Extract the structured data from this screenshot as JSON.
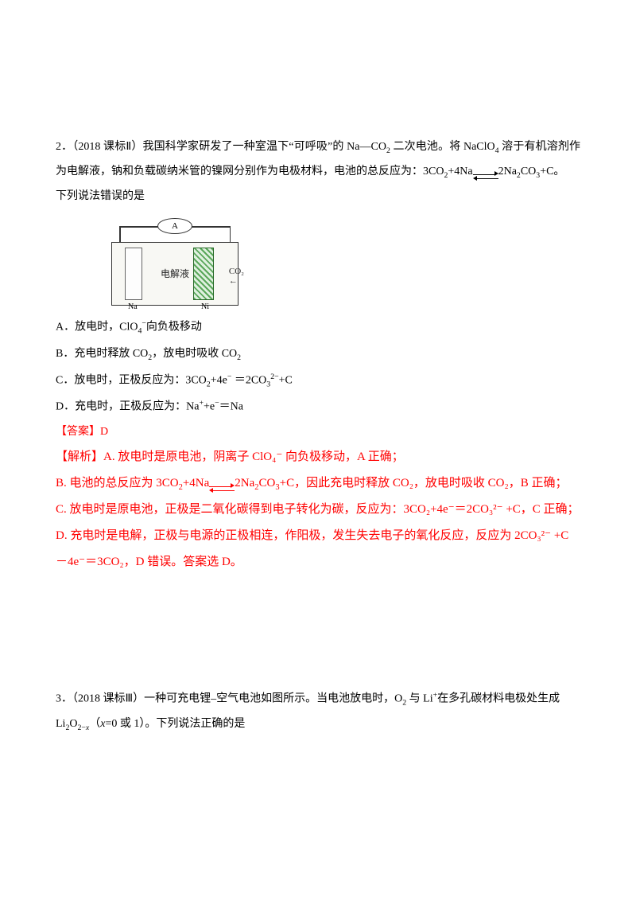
{
  "q2": {
    "number": "2．（2018 课标Ⅱ）",
    "stem_part1": "我国科学家研发了一种室温下“可呼吸”的 Na—CO",
    "stem_part2": " 二次电池。将 NaClO",
    "stem_part3": " 溶于有机溶剂作为电解液，钠和负载碳纳米管的镍网分别作为电极材料，电池的总反应为：3CO",
    "stem_part4": "+4Na",
    "stem_part5": "2Na",
    "stem_part6": "CO",
    "stem_part7": "+C。",
    "stem_tail": "下列说法错误的是",
    "diagram": {
      "ammeter": "A",
      "cell_label": "电解液",
      "left_electrode": "Na",
      "right_electrode": "Ni",
      "co2_label": "CO₂"
    },
    "options": {
      "A_pre": "A．放电时，ClO",
      "A_sup": "−",
      "A_sub": "4",
      "A_post": "向负极移动",
      "B_pre": "B．充电时释放 CO",
      "B_mid": "，放电时吸收 CO",
      "C_pre": "C．放电时，正极反应为：3CO",
      "C_mid1": "+4e",
      "C_mid2": " ＝2CO",
      "C_sup32": "2−",
      "C_sub3": "3",
      "C_post": "+C",
      "D_pre": "D．充电时，正极反应为：Na",
      "D_mid": "+e",
      "D_post": "＝Na"
    },
    "answer": "【答案】D",
    "explanation": {
      "head": "【解析】",
      "A": "A. 放电时是原电池，阴离子 ClO₄⁻ 向负极移动，A 正确；",
      "B_pre": "B. 电池的总反应为 3CO",
      "B_mid": "+4Na",
      "B_prod1": "2Na",
      "B_prod2": "CO",
      "B_post": "+C，因此充电时释放 CO₂，放电时吸收 CO₂，B 正确；",
      "C": "C. 放电时是原电池，正极是二氧化碳得到电子转化为碳，反应为：3CO₂+4e⁻＝2CO₃²⁻ +C，C 正确；",
      "D": "D. 充电时是电解，正极与电源的正极相连，作阳极，发生失去电子的氧化反应，反应为 2CO₃²⁻ +C－4e⁻＝3CO₂，D 错误。答案选 D。"
    }
  },
  "q3": {
    "number": "3．（2018 课标Ⅲ）",
    "stem_part1": "一种可充电锂–空气电池如图所示。当电池放电时，O",
    "stem_part2": " 与 Li",
    "stem_part3": "在多孔碳材料电极处生成",
    "li2o2_pre": "Li",
    "li2o2_mid": "O",
    "tail_pre": "（",
    "x_var": "x",
    "tail_post": "=0 或 1）。下列说法正确的是"
  },
  "colors": {
    "text": "#000000",
    "answer": "#ff0000",
    "background": "#ffffff"
  },
  "fontsize": {
    "body": 14,
    "explanation": 15
  }
}
